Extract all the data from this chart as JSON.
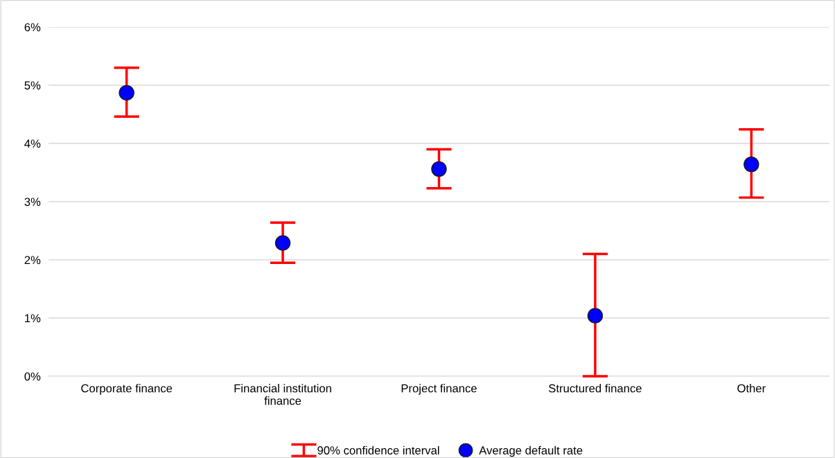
{
  "chart_data": {
    "type": "scatter",
    "categories": [
      "Corporate finance",
      "Financial institution\nfinance",
      "Project finance",
      "Structured finance",
      "Other"
    ],
    "series": [
      {
        "name": "Average default rate",
        "color": "#0000ff",
        "values": [
          4.87,
          2.29,
          3.56,
          1.04,
          3.64
        ],
        "errors": [
          [
            4.46,
            5.3
          ],
          [
            1.95,
            2.64
          ],
          [
            3.23,
            3.9
          ],
          [
            0.0,
            2.1
          ],
          [
            3.07,
            4.24
          ]
        ]
      }
    ],
    "annotations": [
      "90% confidence interval"
    ],
    "ylim": [
      0,
      6
    ],
    "yticks": [
      {
        "value": 0,
        "label": "0%"
      },
      {
        "value": 1,
        "label": "1%"
      },
      {
        "value": 2,
        "label": "2%"
      },
      {
        "value": 3,
        "label": "3%"
      },
      {
        "value": 4,
        "label": "4%"
      },
      {
        "value": 5,
        "label": "5%"
      },
      {
        "value": 6,
        "label": "6%"
      }
    ],
    "grid": "y",
    "legend": "bottom",
    "marker": "circle"
  }
}
